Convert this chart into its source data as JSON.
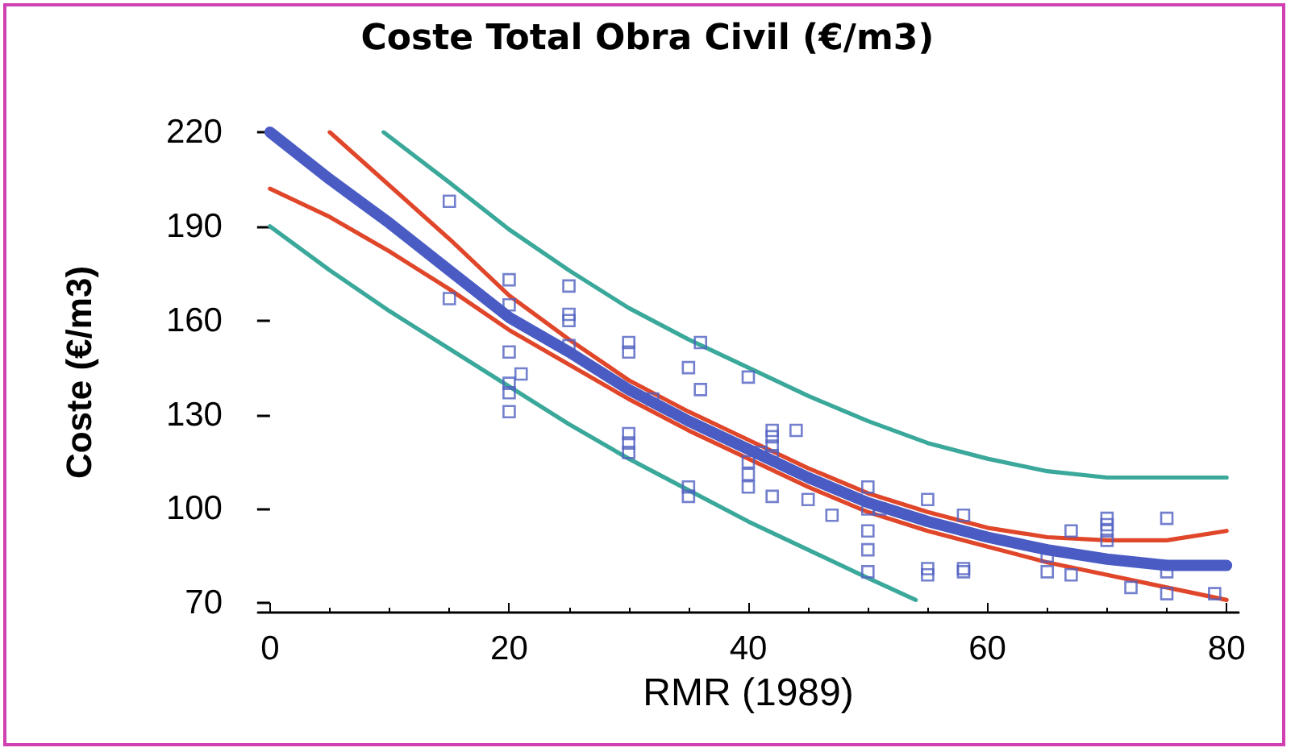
{
  "chart_data": {
    "type": "scatter",
    "title": "Coste Total Obra Civil (€/m3)",
    "xlabel": "RMR (1989)",
    "ylabel": "Coste (€/m3)",
    "xlim": [
      -1,
      81
    ],
    "xticks": [
      0,
      20,
      40,
      60,
      80
    ],
    "ylim": [
      67,
      220
    ],
    "yticks": [
      70,
      100,
      130,
      160,
      190,
      220
    ],
    "grid": false,
    "series": [
      {
        "marker": "square",
        "color": "#5060c0",
        "x": [
          15,
          15,
          20,
          20,
          20,
          20,
          20,
          20,
          21,
          25,
          25,
          25,
          25,
          30,
          30,
          30,
          30,
          30,
          32,
          35,
          35,
          35,
          36,
          36,
          40,
          40,
          40,
          40,
          41,
          42,
          42,
          42,
          42,
          42,
          44,
          45,
          47,
          50,
          50,
          50,
          50,
          50,
          51,
          55,
          55,
          55,
          58,
          58,
          58,
          65,
          65,
          67,
          67,
          70,
          70,
          70,
          70,
          72,
          75,
          75,
          75,
          79
        ],
        "values": [
          198,
          167,
          173,
          165,
          150,
          140,
          137,
          131,
          143,
          171,
          162,
          160,
          152,
          153,
          150,
          124,
          121,
          118,
          135,
          145,
          107,
          104,
          153,
          138,
          142,
          115,
          111,
          107,
          118,
          125,
          123,
          120,
          117,
          104,
          125,
          103,
          98,
          107,
          100,
          93,
          87,
          80,
          100,
          103,
          81,
          79,
          98,
          81,
          80,
          85,
          80,
          93,
          79,
          97,
          95,
          93,
          90,
          75,
          97,
          80,
          73,
          73
        ]
      },
      {
        "type": "line",
        "marker": "none",
        "color": "#4a5cc4",
        "x": [
          0,
          5,
          10,
          15,
          20,
          25,
          30,
          35,
          40,
          45,
          50,
          55,
          60,
          65,
          70,
          75,
          80
        ],
        "values": [
          220,
          205,
          191,
          176,
          161,
          150,
          138,
          128,
          119,
          110,
          102,
          96,
          91,
          87,
          84,
          82,
          82
        ]
      },
      {
        "type": "line",
        "marker": "none",
        "color": "#e0462a",
        "x": [
          5,
          10,
          15,
          20,
          25,
          30,
          35,
          40,
          45,
          50,
          55,
          60,
          65,
          70,
          75,
          80
        ],
        "values": [
          220,
          203,
          186,
          168,
          154,
          141,
          131,
          122,
          113,
          105,
          99,
          94,
          91,
          90,
          90,
          93
        ]
      },
      {
        "type": "line",
        "marker": "none",
        "color": "#e0462a",
        "x": [
          0,
          5,
          10,
          15,
          20,
          25,
          30,
          35,
          40,
          45,
          50,
          55,
          60,
          65,
          70,
          75,
          80
        ],
        "values": [
          202,
          193,
          182,
          170,
          157,
          146,
          135,
          125,
          116,
          107,
          99,
          93,
          88,
          83,
          79,
          75,
          71
        ]
      },
      {
        "type": "line",
        "marker": "none",
        "color": "#3aa89a",
        "x": [
          9.5,
          15,
          20,
          25,
          30,
          35,
          40,
          45,
          50,
          55,
          60,
          65,
          70,
          75,
          80
        ],
        "values": [
          220,
          204,
          189,
          176,
          164,
          154,
          145,
          136,
          128,
          121,
          116,
          112,
          110,
          110,
          110
        ]
      },
      {
        "type": "line",
        "marker": "none",
        "color": "#3aa89a",
        "x": [
          0,
          5,
          10,
          15,
          20,
          25,
          30,
          35,
          40,
          45,
          50,
          54
        ],
        "values": [
          190,
          176,
          163,
          151,
          139,
          127,
          116,
          106,
          96,
          87,
          78,
          71
        ]
      }
    ]
  }
}
